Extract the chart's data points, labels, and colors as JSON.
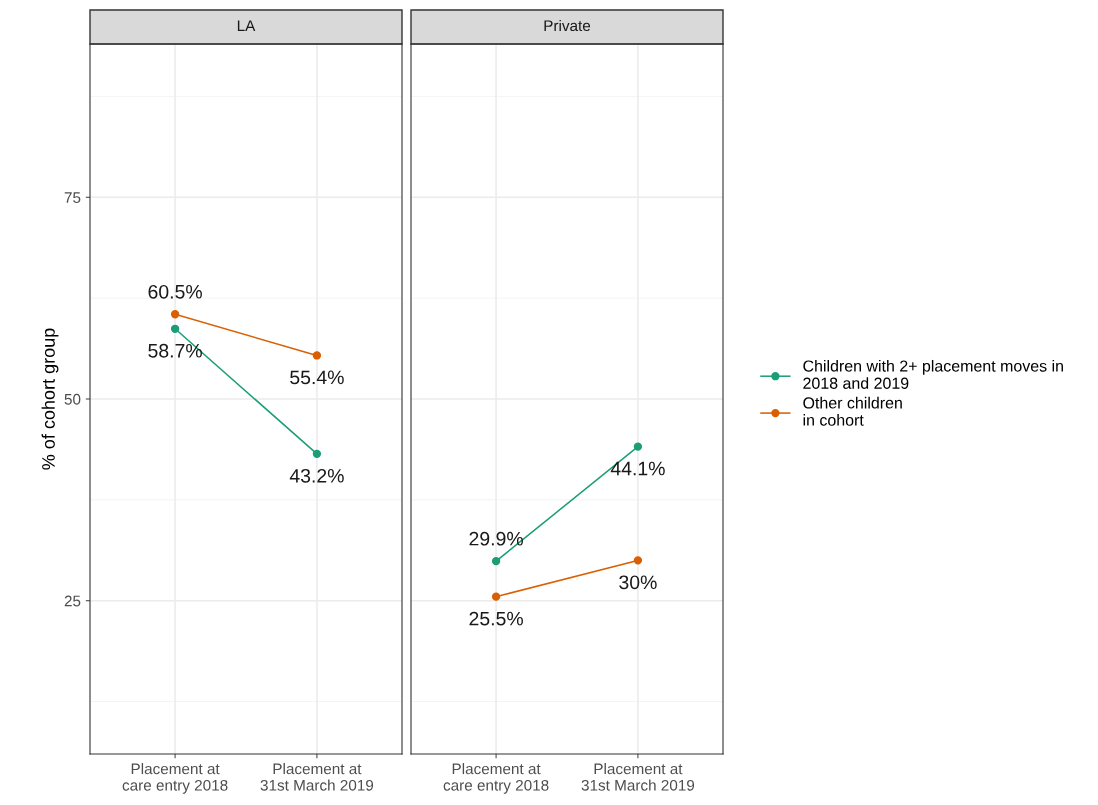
{
  "chart_data": [
    {
      "type": "line",
      "title": "LA",
      "ylabel": "% of cohort group",
      "categories": [
        "Placement at\ncare entry 2018",
        "Placement at\n31st March 2019"
      ],
      "ylim": [
        6,
        94
      ],
      "yticks": [
        25,
        50,
        75
      ],
      "grid": true,
      "marker": "circle",
      "legend": "right",
      "series": [
        {
          "name": "Children with 2+ placement moves in\n2018 and 2019",
          "color": "#1b9e77",
          "values": [
            58.7,
            43.2
          ],
          "value_labels": [
            "58.7%",
            "43.2%"
          ]
        },
        {
          "name": "Other children\nin cohort",
          "color": "#d95f02",
          "values": [
            60.5,
            55.4
          ],
          "value_labels": [
            "60.5%",
            "55.4%"
          ]
        }
      ]
    },
    {
      "type": "line",
      "title": "Private",
      "categories": [
        "Placement at\ncare entry 2018",
        "Placement at\n31st March 2019"
      ],
      "ylim": [
        6,
        94
      ],
      "yticks": [
        25,
        50,
        75
      ],
      "tick_labels": "x",
      "grid": true,
      "marker": "circle",
      "series": [
        {
          "color": "#1b9e77",
          "values": [
            29.9,
            44.1
          ],
          "value_labels": [
            "29.9%",
            "44.1%"
          ]
        },
        {
          "color": "#d95f02",
          "values": [
            25.5,
            30.0
          ],
          "value_labels": [
            "25.5%",
            "30%"
          ]
        }
      ]
    }
  ]
}
